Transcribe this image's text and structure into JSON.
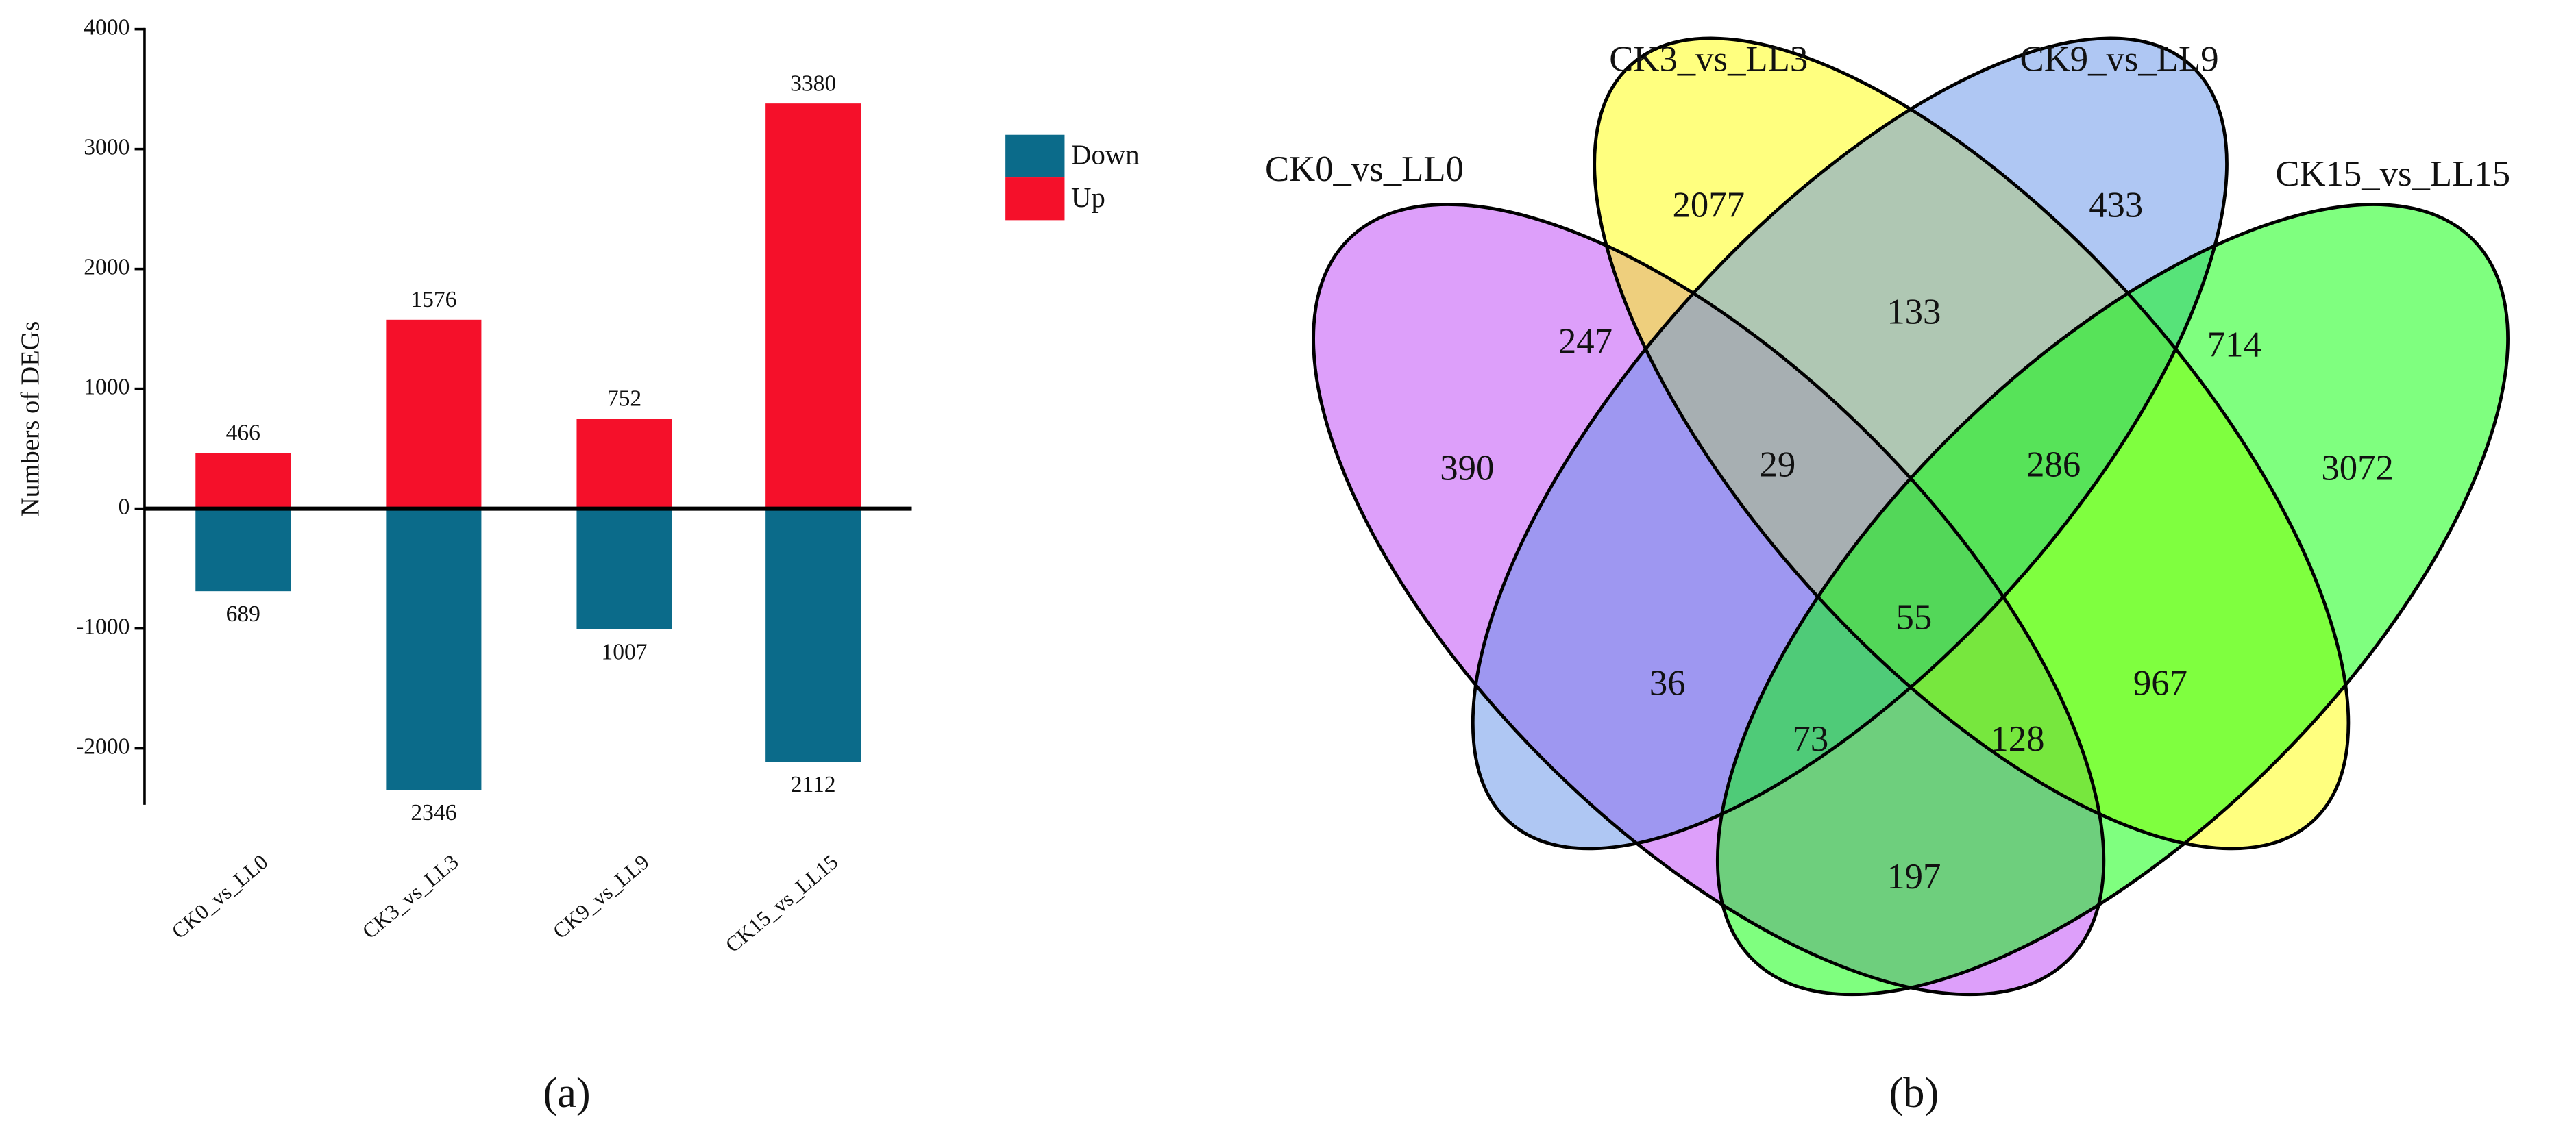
{
  "chart_data": [
    {
      "type": "bar",
      "panel_label": "(a)",
      "ylabel": "Numbers of DEGs",
      "categories": [
        "CK0_vs_LL0",
        "CK3_vs_LL3",
        "CK9_vs_LL9",
        "CK15_vs_LL15"
      ],
      "ylim": [
        -2470,
        4010
      ],
      "yticks": [
        4000,
        3000,
        2000,
        1000,
        0,
        -1000,
        -2000
      ],
      "legend": "right",
      "series": [
        {
          "name": "Down",
          "color": "#0b6b8a",
          "values": [
            -689,
            -2346,
            -1007,
            -2112
          ],
          "value_labels": [
            "689",
            "2346",
            "1007",
            "2112"
          ]
        },
        {
          "name": "Up",
          "color": "#f5102a",
          "values": [
            466,
            1576,
            752,
            3380
          ]
        }
      ]
    },
    {
      "type": "venn",
      "panel_label": "(b)",
      "sets": [
        {
          "name": "CK0_vs_LL0",
          "color": "#bb40f5"
        },
        {
          "name": "CK3_vs_LL3",
          "color": "#ffff00"
        },
        {
          "name": "CK9_vs_LL9",
          "color": "#6090e8"
        },
        {
          "name": "CK15_vs_LL15",
          "color": "#00ff00"
        }
      ],
      "values": [
        390,
        2077,
        433,
        3072,
        247,
        133,
        714,
        29,
        286,
        55,
        36,
        967,
        73,
        128,
        197
      ]
    }
  ]
}
